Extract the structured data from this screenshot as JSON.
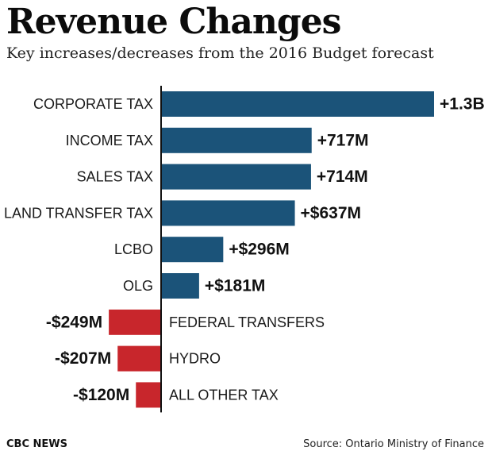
{
  "chart_data": {
    "type": "bar",
    "orientation": "horizontal",
    "title": "Revenue Changes",
    "subtitle": "Key increases/decreases from the 2016 Budget forecast",
    "unit": "millions of dollars",
    "categories": [
      "CORPORATE TAX",
      "INCOME TAX",
      "SALES TAX",
      "LAND TRANSFER TAX",
      "LCBO",
      "OLG",
      "FEDERAL TRANSFERS",
      "HYDRO",
      "ALL OTHER TAX"
    ],
    "values": [
      1300,
      717,
      714,
      637,
      296,
      181,
      -249,
      -207,
      -120
    ],
    "value_labels": [
      "+1.3B",
      "+717M",
      "+714M",
      "+$637M",
      "+$296M",
      "+$181M",
      "-$249M",
      "-$207M",
      "-$120M"
    ],
    "colors": {
      "positive": "#1b5379",
      "negative": "#c8262c",
      "axis": "#111111"
    },
    "xlabel": "",
    "ylabel": "",
    "grid": false
  },
  "footer": {
    "credit": "CBC NEWS",
    "source": "Source: Ontario Ministry of Finance"
  }
}
